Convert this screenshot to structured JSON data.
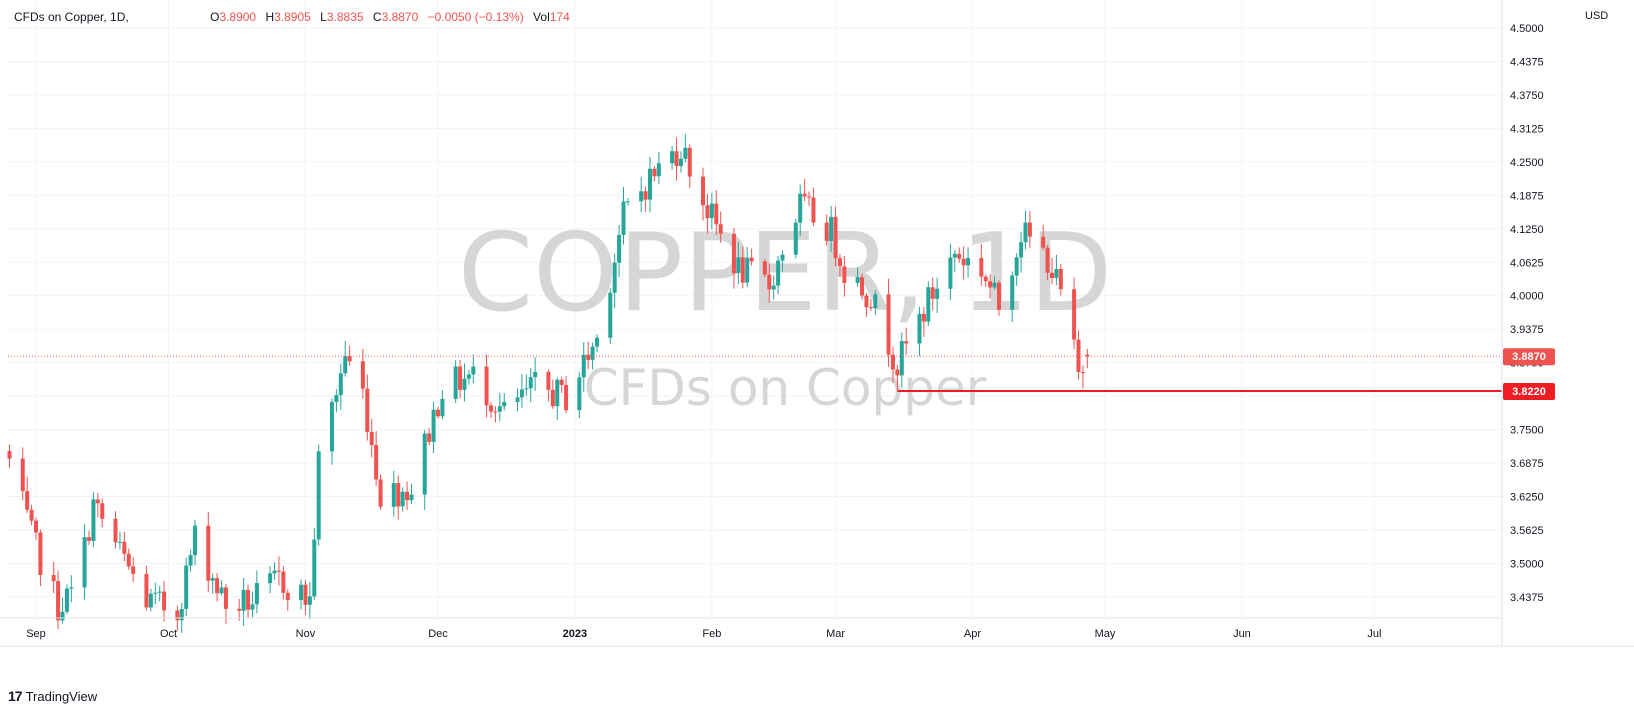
{
  "legend": {
    "symbol": "CFDs on Copper, 1D, ",
    "o_label": "O",
    "o_value": "3.8900",
    "h_label": "H",
    "h_value": "3.8905",
    "l_label": "L",
    "l_value": "3.8835",
    "c_label": "C",
    "c_value": "3.8870",
    "change": "−0.0050 (−0.13%)",
    "vol_label": "Vol",
    "vol_value": "174"
  },
  "currency": "USD",
  "watermark": {
    "title": "COPPER, 1D",
    "subtitle": "CFDs on Copper"
  },
  "branding": {
    "logo": "17",
    "name": "TradingView"
  },
  "colors": {
    "up": "#26a69a",
    "down": "#ef5350",
    "last_price": "#ef5350",
    "support": "#ef1c24"
  },
  "chart_data": {
    "type": "candlestick",
    "ylim": [
      3.4,
      4.5
    ],
    "yticks": [
      "4.5000",
      "4.4375",
      "4.3750",
      "4.3125",
      "4.2500",
      "4.1875",
      "4.1250",
      "4.0625",
      "4.0000",
      "3.9375",
      "3.8750",
      "3.8125",
      "3.7500",
      "3.6875",
      "3.6250",
      "3.5625",
      "3.5000",
      "3.4375"
    ],
    "xticks": [
      "Sep",
      "Oct",
      "Nov",
      "Dec",
      "2023",
      "Feb",
      "Mar",
      "Apr",
      "May",
      "Jun",
      "Jul"
    ],
    "last_price": {
      "value": 3.887,
      "label": "3.8870"
    },
    "support_line": {
      "value": 3.822,
      "label": "3.8220",
      "start": "2023-03-15"
    },
    "ohlc_keyframes": [
      {
        "date": "2022-08-26",
        "close": 3.69
      },
      {
        "date": "2022-08-31",
        "close": 3.55
      },
      {
        "date": "2022-09-06",
        "close": 3.42
      },
      {
        "date": "2022-09-10",
        "close": 3.45
      },
      {
        "date": "2022-09-14",
        "close": 3.61
      },
      {
        "date": "2022-09-20",
        "close": 3.52
      },
      {
        "date": "2022-09-26",
        "close": 3.43
      },
      {
        "date": "2022-10-03",
        "close": 3.41
      },
      {
        "date": "2022-10-07",
        "close": 3.55
      },
      {
        "date": "2022-10-14",
        "close": 3.42
      },
      {
        "date": "2022-10-20",
        "close": 3.43
      },
      {
        "date": "2022-10-26",
        "close": 3.47
      },
      {
        "date": "2022-11-02",
        "close": 3.43
      },
      {
        "date": "2022-11-04",
        "close": 3.69
      },
      {
        "date": "2022-11-10",
        "close": 3.89
      },
      {
        "date": "2022-11-14",
        "close": 3.82
      },
      {
        "date": "2022-11-18",
        "close": 3.63
      },
      {
        "date": "2022-11-25",
        "close": 3.64
      },
      {
        "date": "2022-12-02",
        "close": 3.83
      },
      {
        "date": "2022-12-09",
        "close": 3.85
      },
      {
        "date": "2022-12-16",
        "close": 3.78
      },
      {
        "date": "2022-12-23",
        "close": 3.83
      },
      {
        "date": "2022-12-30",
        "close": 3.81
      },
      {
        "date": "2023-01-06",
        "close": 3.92
      },
      {
        "date": "2023-01-12",
        "close": 4.15
      },
      {
        "date": "2023-01-18",
        "close": 4.22
      },
      {
        "date": "2023-01-25",
        "close": 4.28
      },
      {
        "date": "2023-01-31",
        "close": 4.16
      },
      {
        "date": "2023-02-07",
        "close": 4.05
      },
      {
        "date": "2023-02-14",
        "close": 4.02
      },
      {
        "date": "2023-02-21",
        "close": 4.17
      },
      {
        "date": "2023-02-28",
        "close": 4.12
      },
      {
        "date": "2023-03-03",
        "close": 4.05
      },
      {
        "date": "2023-03-09",
        "close": 4.0
      },
      {
        "date": "2023-03-15",
        "close": 3.87
      },
      {
        "date": "2023-03-22",
        "close": 3.99
      },
      {
        "date": "2023-03-28",
        "close": 4.08
      },
      {
        "date": "2023-04-03",
        "close": 4.05
      },
      {
        "date": "2023-04-07",
        "close": 3.98
      },
      {
        "date": "2023-04-12",
        "close": 4.12
      },
      {
        "date": "2023-04-18",
        "close": 4.07
      },
      {
        "date": "2023-04-22",
        "close": 3.98
      },
      {
        "date": "2023-04-25",
        "close": 3.85
      },
      {
        "date": "2023-04-27",
        "close": 3.887
      }
    ]
  }
}
